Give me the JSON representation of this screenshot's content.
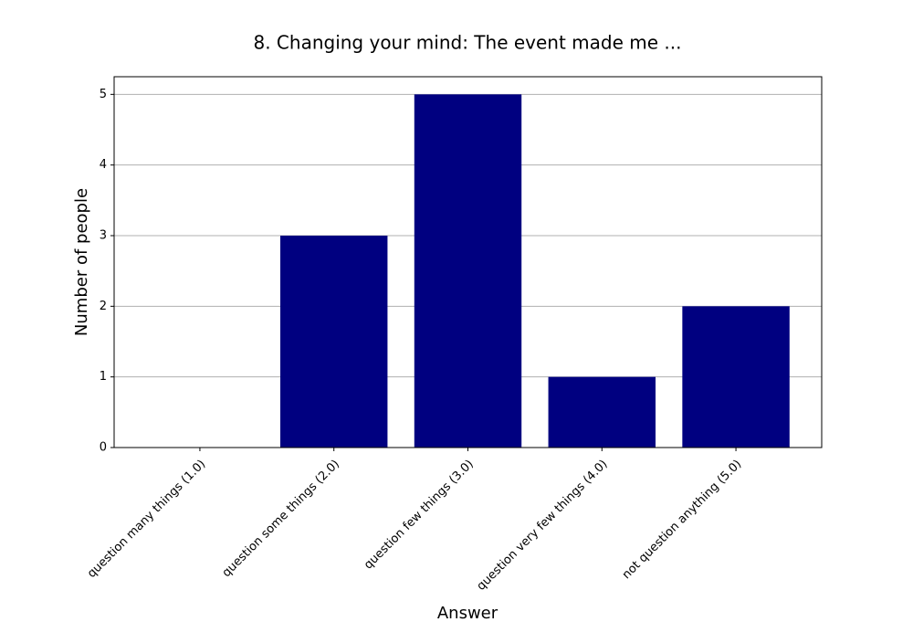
{
  "chart_data": {
    "type": "bar",
    "title": "8. Changing your mind: The event made me ...",
    "x_label": "Answer",
    "y_label": "Number of people",
    "categories": [
      "question many things (1.0)",
      "question some things (2.0)",
      "question few things (3.0)",
      "question very few things (4.0)",
      "not question anything (5.0)"
    ],
    "values": [
      0,
      3,
      5,
      1,
      2
    ],
    "color": "#000080",
    "ylim": [
      0,
      5.25
    ],
    "yticks": [
      0,
      1,
      2,
      3,
      4,
      5
    ],
    "grid": true
  }
}
